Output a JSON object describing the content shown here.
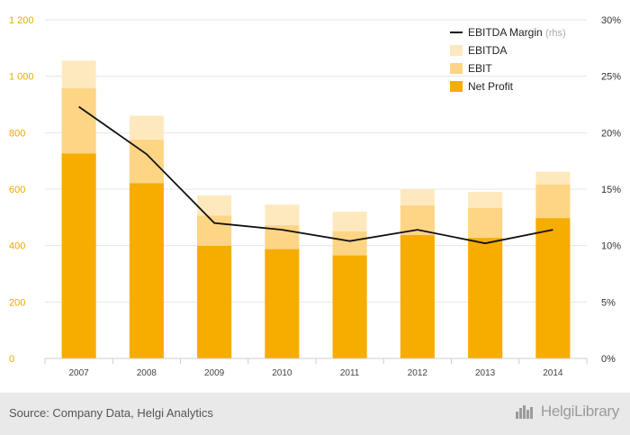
{
  "chart_data": {
    "type": "bar",
    "categories": [
      "2007",
      "2008",
      "2009",
      "2010",
      "2011",
      "2012",
      "2013",
      "2014"
    ],
    "series": [
      {
        "name": "Net Profit",
        "kind": "stacked-bar",
        "values": [
          726,
          621,
          399,
          387,
          365,
          437,
          427,
          497
        ]
      },
      {
        "name": "EBIT",
        "kind": "stacked-bar",
        "values": [
          957,
          775,
          506,
          472,
          450,
          542,
          533,
          616
        ]
      },
      {
        "name": "EBITDA",
        "kind": "stacked-bar",
        "values": [
          1055,
          860,
          578,
          545,
          520,
          600,
          590,
          662
        ]
      },
      {
        "name": "EBITDA Margin",
        "legend_suffix": "(rhs)",
        "kind": "line",
        "axis": "right",
        "values": [
          22.3,
          18.1,
          12.0,
          11.4,
          10.4,
          11.4,
          10.2,
          11.4
        ]
      }
    ],
    "left_axis": {
      "ylim": [
        0,
        1200
      ],
      "ticks": [
        0,
        200,
        400,
        600,
        800,
        1000,
        1200
      ],
      "tick_labels": [
        "0",
        "200",
        "400",
        "600",
        "800",
        "1 000",
        "1 200"
      ]
    },
    "right_axis": {
      "ylim": [
        0,
        30
      ],
      "ticks": [
        0,
        5,
        10,
        15,
        20,
        25,
        30
      ],
      "tick_labels": [
        "0%",
        "5%",
        "10%",
        "15%",
        "20%",
        "25%",
        "30%"
      ]
    },
    "grid": true,
    "legend_position": "top-right",
    "colors": {
      "Net Profit": "#f7ac00",
      "EBIT": "#fdd585",
      "EBITDA": "#fee9bf",
      "EBITDA Margin": "#111111",
      "left_axis_text": "#f0a800",
      "right_axis_text": "#333333",
      "grid": "#e6e6e6"
    }
  },
  "footer": {
    "source": "Source: Company Data, Helgi Analytics",
    "logo_text": "HelgiLibrary",
    "logo_icon": "city-skyline-icon"
  }
}
